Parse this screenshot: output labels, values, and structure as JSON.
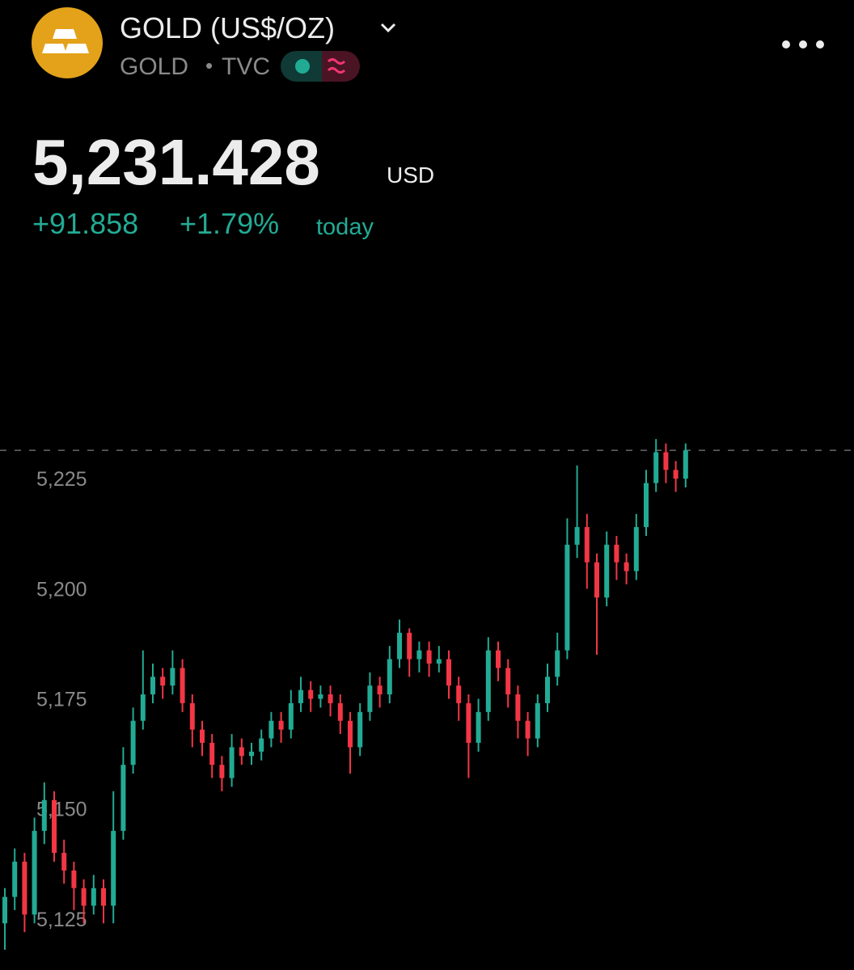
{
  "header": {
    "title": "GOLD (US$/OZ)",
    "symbol": "GOLD",
    "exchange": "TVC",
    "price": "5,231.428",
    "currency": "USD",
    "change": "+91.858",
    "change_percent": "+1.79%",
    "period": "today"
  },
  "chart_data": {
    "type": "candlestick",
    "up_color": "#22ab94",
    "down_color": "#f23645",
    "ylim": [
      5113.4,
      5271.3
    ],
    "yticks": [
      {
        "value": 5125,
        "label": "5,125"
      },
      {
        "value": 5150,
        "label": "5,150"
      },
      {
        "value": 5175,
        "label": "5,175"
      },
      {
        "value": 5200,
        "label": "5,200"
      },
      {
        "value": 5225,
        "label": "5,225"
      }
    ],
    "open": [
      5124,
      5130,
      5138,
      5126,
      5145,
      5152,
      5140,
      5136,
      5132,
      5128,
      5132,
      5128,
      5145,
      5160,
      5170,
      5176,
      5180,
      5178,
      5182,
      5174,
      5168,
      5165,
      5160,
      5157,
      5164,
      5162,
      5163,
      5166,
      5170,
      5168,
      5174,
      5177,
      5175,
      5176,
      5174,
      5170,
      5164,
      5172,
      5178,
      5176,
      5184,
      5190,
      5184,
      5186,
      5183,
      5184,
      5178,
      5174,
      5165,
      5172,
      5186,
      5182,
      5176,
      5170,
      5166,
      5174,
      5180,
      5186,
      5210,
      5214,
      5206,
      5198,
      5210,
      5206,
      5204,
      5214,
      5224,
      5231,
      5227,
      5225
    ],
    "high": [
      5132,
      5141,
      5140,
      5148,
      5156,
      5154,
      5143,
      5138,
      5134,
      5135,
      5134,
      5154,
      5164,
      5173,
      5186,
      5183,
      5182,
      5186,
      5184,
      5176,
      5170,
      5167,
      5162,
      5167,
      5166,
      5165,
      5168,
      5172,
      5172,
      5177,
      5180,
      5179,
      5178,
      5178,
      5176,
      5172,
      5174,
      5181,
      5180,
      5187,
      5193,
      5191,
      5188,
      5188,
      5187,
      5186,
      5180,
      5176,
      5175,
      5189,
      5188,
      5184,
      5178,
      5172,
      5176,
      5183,
      5190,
      5216,
      5228,
      5217,
      5208,
      5213,
      5212,
      5208,
      5217,
      5227,
      5234,
      5233,
      5229,
      5233
    ],
    "low": [
      5118,
      5127,
      5122,
      5124,
      5142,
      5138,
      5133,
      5127,
      5124,
      5126,
      5124,
      5124,
      5143,
      5158,
      5168,
      5174,
      5175,
      5176,
      5172,
      5164,
      5162,
      5157,
      5154,
      5155,
      5160,
      5160,
      5161,
      5164,
      5165,
      5166,
      5172,
      5172,
      5173,
      5171,
      5167,
      5158,
      5162,
      5170,
      5173,
      5174,
      5182,
      5180,
      5181,
      5180,
      5181,
      5175,
      5170,
      5157,
      5163,
      5170,
      5179,
      5173,
      5166,
      5162,
      5164,
      5172,
      5178,
      5184,
      5207,
      5200,
      5185,
      5196,
      5202,
      5201,
      5202,
      5212,
      5222,
      5224,
      5222,
      5223
    ],
    "close": [
      5130,
      5138,
      5126,
      5145,
      5152,
      5140,
      5136,
      5132,
      5128,
      5132,
      5128,
      5145,
      5160,
      5170,
      5176,
      5180,
      5178,
      5182,
      5174,
      5168,
      5165,
      5160,
      5157,
      5164,
      5162,
      5163,
      5166,
      5170,
      5168,
      5174,
      5177,
      5175,
      5176,
      5174,
      5170,
      5164,
      5172,
      5178,
      5176,
      5184,
      5190,
      5184,
      5186,
      5183,
      5184,
      5178,
      5174,
      5165,
      5172,
      5186,
      5182,
      5176,
      5170,
      5166,
      5174,
      5180,
      5186,
      5210,
      5214,
      5206,
      5198,
      5210,
      5206,
      5204,
      5214,
      5224,
      5231,
      5227,
      5225,
      5231.428
    ]
  }
}
